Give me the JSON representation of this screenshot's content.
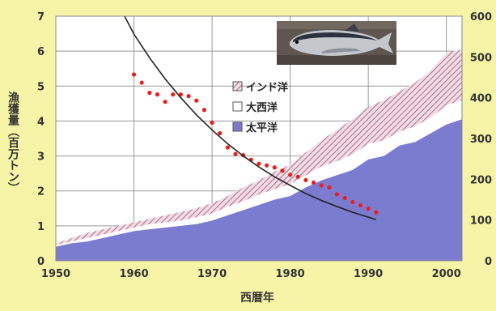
{
  "chart_data": {
    "type": "area",
    "xlabel": "西暦年",
    "ylabel": "漁獲量（百万トン）",
    "xlim": [
      1950,
      2002
    ],
    "ylim": [
      0,
      7
    ],
    "y2lim": [
      0,
      600
    ],
    "x_ticks": [
      1950,
      1960,
      1970,
      1980,
      1990,
      2000
    ],
    "y_ticks": [
      0,
      1,
      2,
      3,
      4,
      5,
      6,
      7
    ],
    "y2_ticks": [
      0,
      100,
      200,
      300,
      400,
      500,
      600
    ],
    "grid": true,
    "legend_position": "center",
    "image": "tuna-photo",
    "colors": {
      "pacific": "#7b7bd0",
      "atlantic": "#ffffff",
      "indian_hatch": "#b06a8a",
      "indian_bg": "#f1dde4",
      "points": "#e62020",
      "curve": "#222222",
      "plot_bg": "#ffffff",
      "grid": "#999999",
      "page_bg": "#f6f4a6"
    },
    "legend": [
      {
        "key": "indian",
        "label": "インド洋"
      },
      {
        "key": "atlantic",
        "label": "大西洋"
      },
      {
        "key": "pacific",
        "label": "太平洋"
      }
    ],
    "area_x": [
      1950,
      1952,
      1954,
      1956,
      1958,
      1960,
      1962,
      1964,
      1966,
      1968,
      1970,
      1972,
      1974,
      1976,
      1978,
      1980,
      1982,
      1984,
      1986,
      1988,
      1990,
      1992,
      1994,
      1996,
      1998,
      2000,
      2002
    ],
    "series": [
      {
        "key": "pacific",
        "values": [
          0.4,
          0.5,
          0.55,
          0.65,
          0.75,
          0.85,
          0.9,
          0.95,
          1.0,
          1.05,
          1.15,
          1.3,
          1.45,
          1.6,
          1.75,
          1.85,
          2.1,
          2.3,
          2.45,
          2.6,
          2.9,
          3.0,
          3.3,
          3.4,
          3.65,
          3.9,
          4.05
        ]
      },
      {
        "key": "atlantic",
        "values": [
          0.45,
          0.55,
          0.65,
          0.75,
          0.85,
          0.95,
          1.05,
          1.1,
          1.15,
          1.25,
          1.35,
          1.55,
          1.7,
          1.9,
          2.05,
          2.2,
          2.45,
          2.7,
          2.85,
          3.05,
          3.35,
          3.45,
          3.7,
          3.85,
          4.1,
          4.45,
          4.6
        ]
      },
      {
        "key": "indian",
        "values": [
          0.5,
          0.65,
          0.8,
          0.9,
          1.0,
          1.1,
          1.2,
          1.3,
          1.4,
          1.5,
          1.65,
          1.85,
          2.1,
          2.3,
          2.55,
          2.75,
          3.1,
          3.45,
          3.75,
          4.05,
          4.4,
          4.6,
          4.85,
          5.1,
          5.45,
          5.95,
          6.05
        ]
      }
    ],
    "cpue_points": {
      "x": [
        1960,
        1961,
        1962,
        1963,
        1964,
        1965,
        1966,
        1967,
        1968,
        1969,
        1970,
        1971,
        1972,
        1973,
        1974,
        1975,
        1976,
        1977,
        1978,
        1979,
        1980,
        1981,
        1982,
        1983,
        1984,
        1985,
        1986,
        1987,
        1988,
        1989,
        1990,
        1991
      ],
      "y2": [
        457,
        437,
        412,
        408,
        390,
        408,
        408,
        404,
        393,
        370,
        339,
        313,
        278,
        262,
        259,
        248,
        238,
        234,
        229,
        221,
        211,
        206,
        198,
        192,
        185,
        180,
        163,
        154,
        144,
        136,
        128,
        119
      ]
    },
    "trend_curve": {
      "x": [
        1958.8,
        1960,
        1962,
        1964,
        1966,
        1968,
        1970,
        1972,
        1974,
        1976,
        1978,
        1980,
        1982,
        1984,
        1986,
        1988,
        1990,
        1991
      ],
      "y2": [
        600,
        556,
        498,
        446,
        400,
        358,
        321,
        287,
        257,
        230,
        206,
        185,
        165,
        148,
        133,
        119,
        107,
        101
      ]
    }
  }
}
